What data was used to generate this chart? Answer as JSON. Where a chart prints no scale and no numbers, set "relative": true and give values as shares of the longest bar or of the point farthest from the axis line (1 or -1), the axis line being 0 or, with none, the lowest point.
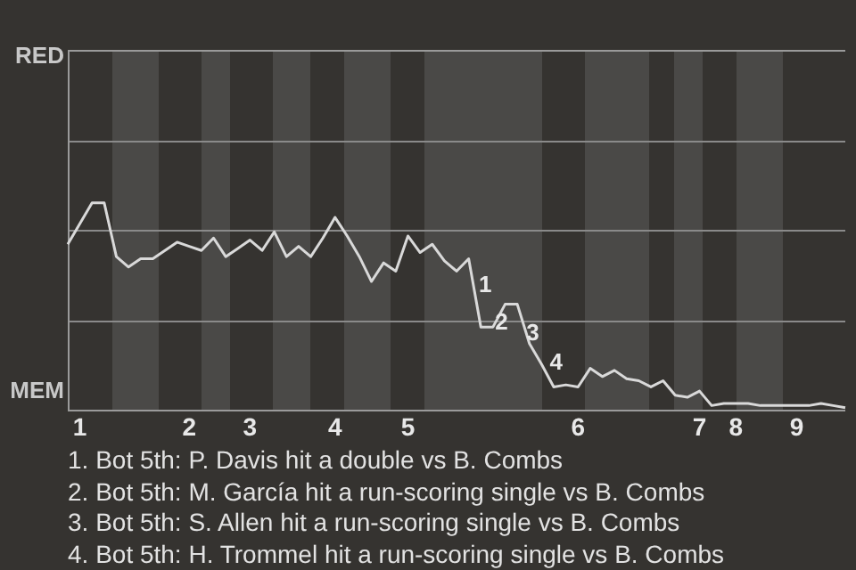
{
  "chart_data": {
    "type": "line",
    "categories": [
      null,
      "1",
      null,
      null,
      null,
      null,
      null,
      null,
      null,
      null,
      "2",
      null,
      null,
      null,
      null,
      "3",
      null,
      null,
      null,
      null,
      null,
      null,
      "4",
      null,
      null,
      null,
      null,
      null,
      "5",
      null,
      null,
      null,
      null,
      null,
      null,
      null,
      null,
      null,
      null,
      null,
      null,
      null,
      "6",
      null,
      null,
      null,
      null,
      null,
      null,
      null,
      null,
      null,
      "7",
      null,
      null,
      "8",
      null,
      null,
      null,
      null,
      "9",
      null,
      null,
      null,
      null
    ],
    "relative": true,
    "series": [
      {
        "color": "#d9d9d9",
        "values": [
          0.8,
          0.9,
          1,
          1,
          0.74,
          0.69,
          0.73,
          0.73,
          0.77,
          0.81,
          0.79,
          0.77,
          0.83,
          0.74,
          0.78,
          0.82,
          0.77,
          0.86,
          0.74,
          0.79,
          0.74,
          0.83,
          0.93,
          0.84,
          0.74,
          0.62,
          0.71,
          0.67,
          0.84,
          0.76,
          0.8,
          0.72,
          0.67,
          0.73,
          0.4,
          0.4,
          0.51,
          0.51,
          0.32,
          0.22,
          0.11,
          0.12,
          0.11,
          0.2,
          0.16,
          0.19,
          0.15,
          0.14,
          0.11,
          0.14,
          0.07,
          0.06,
          0.09,
          0.02,
          0.03,
          0.03,
          0.03,
          0.02,
          0.02,
          0.02,
          0.02,
          0.02,
          0.03,
          0.02,
          0.01
        ]
      }
    ],
    "ref_lines": [
      {
        "axis": "y",
        "value": 0.435,
        "color": "#8a8a8a"
      },
      {
        "axis": "y",
        "value": 0.87,
        "color": "#8a8a8a"
      },
      {
        "axis": "y",
        "value": 1.305,
        "color": "#8a8a8a"
      }
    ],
    "legend": false,
    "marker": "none",
    "line_style": "solid",
    "annotations": [
      "RED",
      "MEM",
      "1",
      "2",
      "3",
      "4",
      "1. Bot 5th: P. Davis hit a double vs B. Combs",
      "2. Bot 5th: M. García hit a run-scoring single vs B. Combs",
      "3. Bot 5th: S. Allen hit a run-scoring single vs B. Combs",
      "4. Bot 5th: H. Trommel hit a run-scoring single vs B. Combs"
    ]
  }
}
